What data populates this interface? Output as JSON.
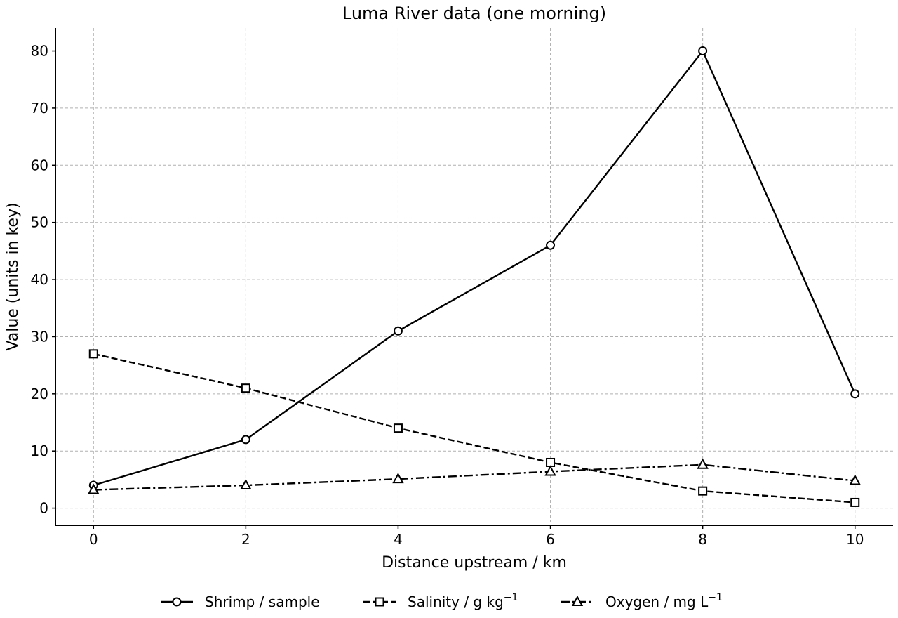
{
  "chart_data": {
    "type": "line",
    "title": "Luma River data (one morning)",
    "xlabel": "Distance upstream / km",
    "ylabel": "Value (units in key)",
    "x": [
      0,
      2,
      4,
      6,
      8,
      10
    ],
    "xlim": [
      -0.5,
      10.5
    ],
    "ylim": [
      -3,
      84
    ],
    "xticks": [
      0,
      2,
      4,
      6,
      8,
      10
    ],
    "yticks": [
      0,
      10,
      20,
      30,
      40,
      50,
      60,
      70,
      80
    ],
    "grid": true,
    "legend_position": "bottom",
    "series": [
      {
        "name": "Shrimp / sample",
        "name_sup": "",
        "marker": "circle",
        "dash": "solid",
        "values": [
          4,
          12,
          31,
          46,
          80,
          20
        ]
      },
      {
        "name": "Salinity / g kg",
        "name_sup": "−1",
        "marker": "square",
        "dash": "dashed",
        "values": [
          27,
          21,
          14,
          8,
          3,
          1
        ]
      },
      {
        "name": "Oxygen / mg L",
        "name_sup": "−1",
        "marker": "triangle",
        "dash": "dashdot",
        "values": [
          3.2,
          4.0,
          5.1,
          6.4,
          7.6,
          4.8
        ]
      }
    ]
  }
}
